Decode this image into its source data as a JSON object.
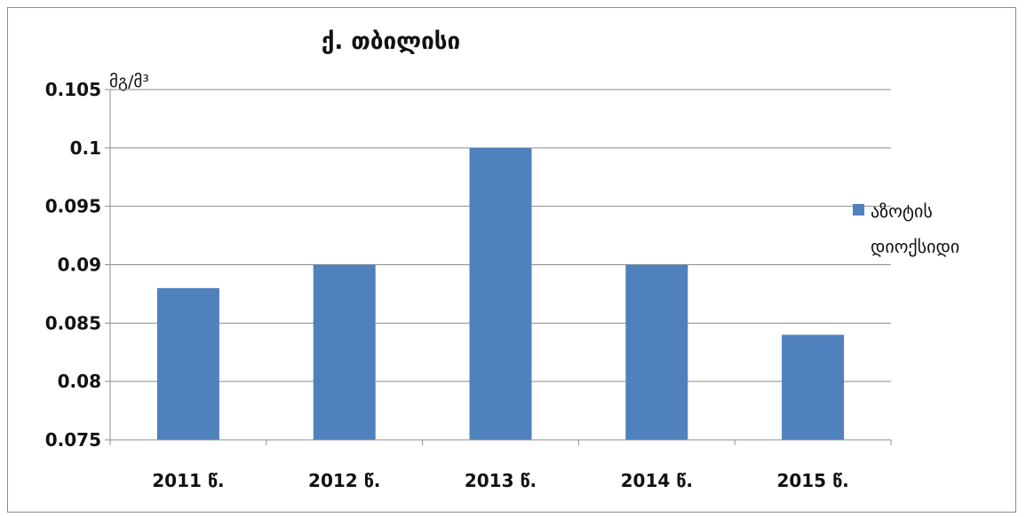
{
  "chart_data": {
    "type": "bar",
    "title": "ქ. თბილისი",
    "ylabel": "მგ/მ³",
    "xlabel": "",
    "categories": [
      "2011 წ.",
      "2012 წ.",
      "2013 წ.",
      "2014 წ.",
      "2015 წ."
    ],
    "series": [
      {
        "name": "აზოტის დიოქსიდი",
        "values": [
          0.088,
          0.09,
          0.1,
          0.09,
          0.084
        ]
      }
    ],
    "ylim": [
      0.075,
      0.105
    ],
    "yticks": [
      "0.075",
      "0.08",
      "0.085",
      "0.09",
      "0.095",
      "0.1",
      "0.105"
    ],
    "legend_lines": [
      "აზოტის",
      "დიოქსიდი"
    ],
    "grid": true,
    "legend_position": "right",
    "colors": {
      "bar": "#4f81bd",
      "grid": "#8c8c8c",
      "axis": "#8c8c8c"
    }
  }
}
